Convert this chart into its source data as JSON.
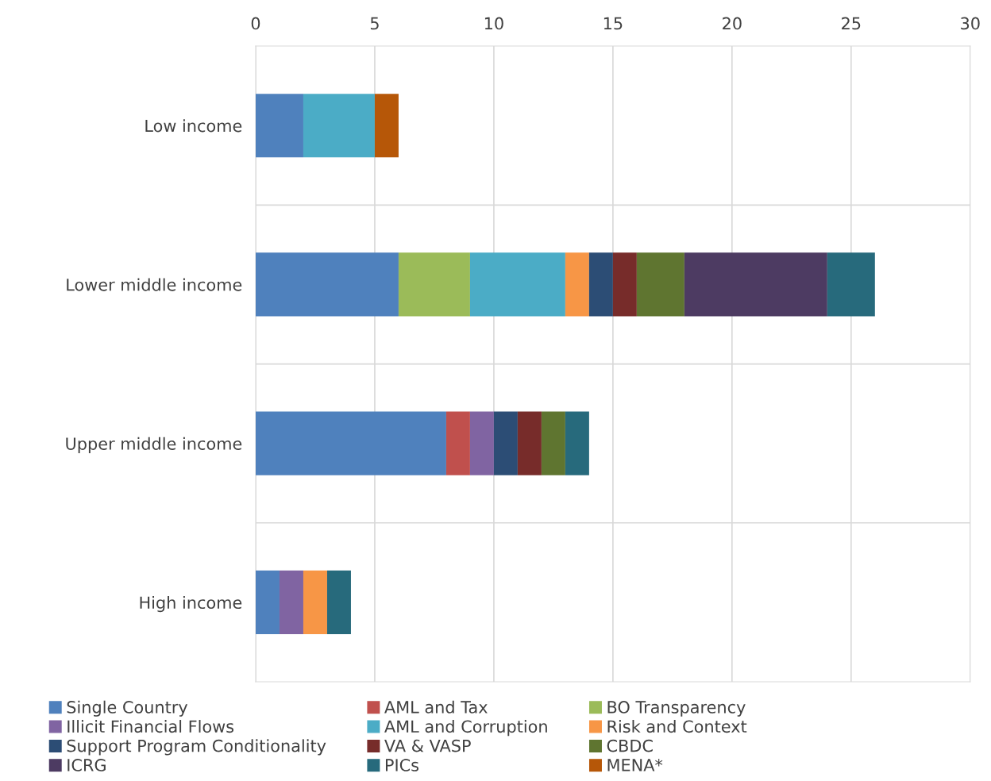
{
  "chart_data": {
    "type": "bar",
    "orientation": "horizontal",
    "stacked": true,
    "categories": [
      "Low income",
      "Lower middle income",
      "Upper middle income",
      "High income"
    ],
    "series": [
      {
        "name": "Single Country",
        "color": "#4f81bd",
        "values": [
          2,
          6,
          8,
          1
        ]
      },
      {
        "name": "AML and Tax",
        "color": "#c0504d",
        "values": [
          null,
          null,
          1,
          null
        ]
      },
      {
        "name": "BO Transparency",
        "color": "#9bbb59",
        "values": [
          null,
          3,
          null,
          null
        ]
      },
      {
        "name": "Illicit Financial Flows",
        "color": "#8064a2",
        "values": [
          null,
          null,
          1,
          1
        ]
      },
      {
        "name": "AML and Corruption",
        "color": "#4bacc6",
        "values": [
          3,
          4,
          null,
          null
        ]
      },
      {
        "name": "Risk and Context",
        "color": "#f79646",
        "values": [
          null,
          1,
          null,
          1
        ]
      },
      {
        "name": "Support Program Conditionality",
        "color": "#2c4d75",
        "values": [
          null,
          1,
          1,
          null
        ]
      },
      {
        "name": "VA & VASP",
        "color": "#772c2a",
        "values": [
          null,
          1,
          1,
          null
        ]
      },
      {
        "name": "CBDC",
        "color": "#5f7530",
        "values": [
          null,
          2,
          1,
          null
        ]
      },
      {
        "name": "ICRG",
        "color": "#4d3b62",
        "values": [
          null,
          6,
          null,
          null
        ]
      },
      {
        "name": "PICs",
        "color": "#276a7c",
        "values": [
          null,
          2,
          1,
          1
        ]
      },
      {
        "name": "MENA*",
        "color": "#b65708",
        "values": [
          1,
          null,
          null,
          null
        ]
      }
    ],
    "xlim": [
      0,
      30
    ],
    "xticks": [
      0,
      5,
      10,
      15,
      20,
      25,
      30
    ],
    "grid": true,
    "legend": "bottom"
  }
}
